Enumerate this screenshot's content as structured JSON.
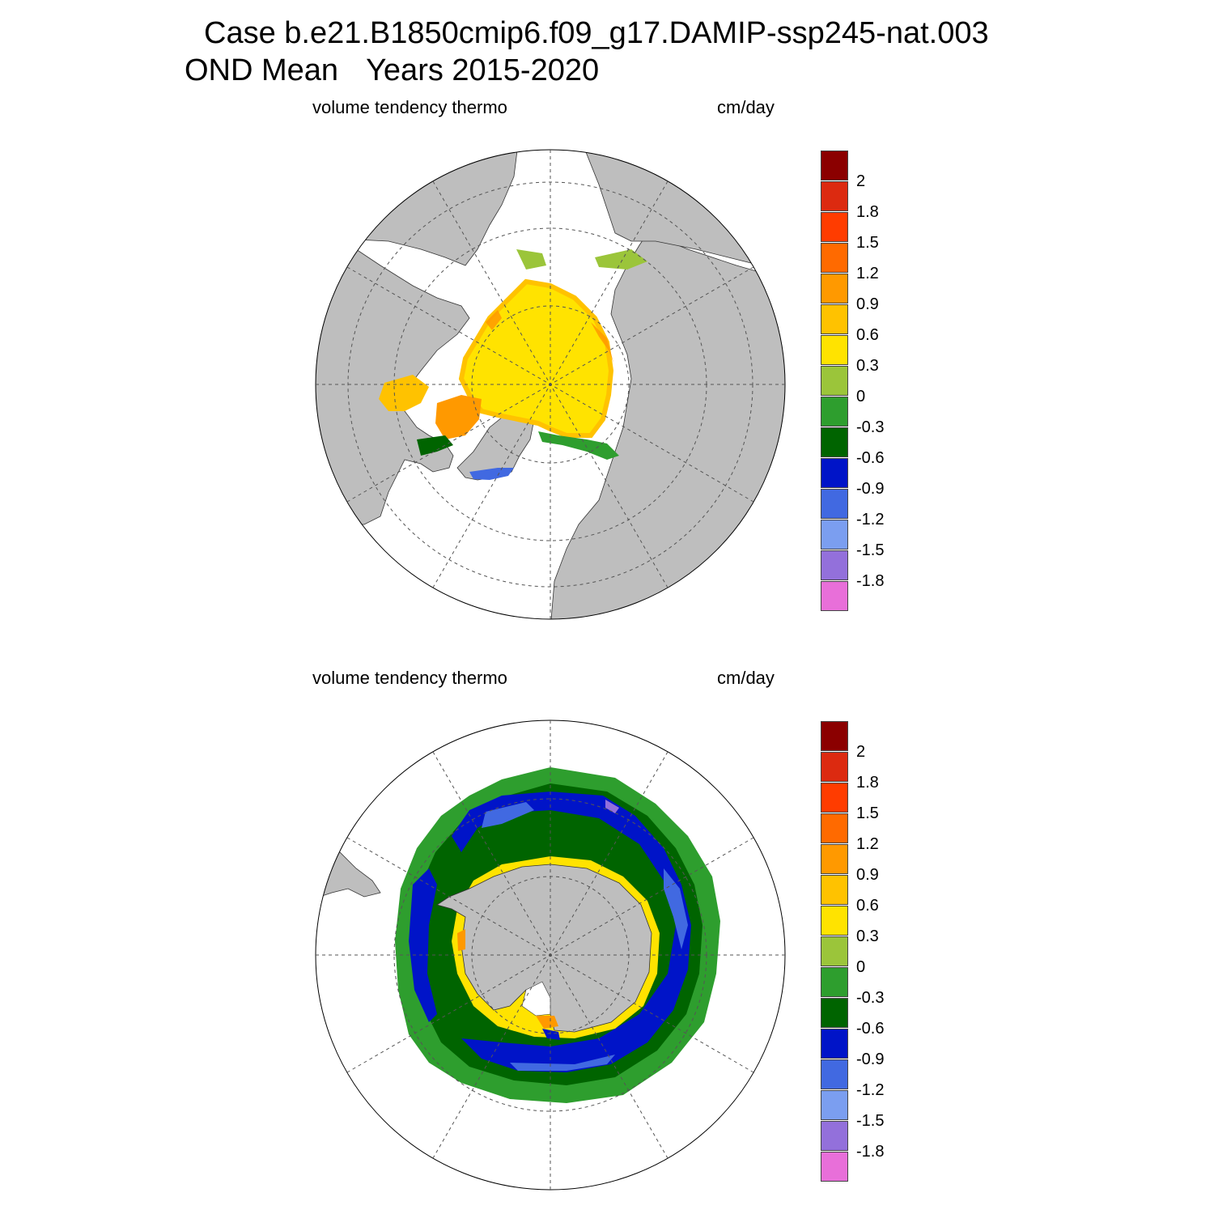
{
  "title": {
    "line1": "Case b.e21.B1850cmip6.f09_g17.DAMIP-ssp245-nat.003",
    "season": "OND Mean",
    "years": "Years 2015-2020"
  },
  "panels": [
    {
      "id": "arctic",
      "variable": "volume tendency thermo",
      "units": "cm/day",
      "hemisphere": "north"
    },
    {
      "id": "antarctic",
      "variable": "volume tendency thermo",
      "units": "cm/day",
      "hemisphere": "south"
    }
  ],
  "colorbar": {
    "labels": [
      "2",
      "1.8",
      "1.5",
      "1.2",
      "0.9",
      "0.6",
      "0.3",
      "0",
      "-0.3",
      "-0.6",
      "-0.9",
      "-1.2",
      "-1.5",
      "-1.8"
    ],
    "colors": [
      "#8b0000",
      "#dc2a10",
      "#ff3c00",
      "#ff6a00",
      "#ff9900",
      "#ffc200",
      "#ffe300",
      "#9bc53a",
      "#2e9e2e",
      "#006400",
      "#0014c8",
      "#4169e1",
      "#7b9ef0",
      "#9370db",
      "#e86fd9"
    ]
  },
  "colors": {
    "land": "#bebebe",
    "grid": "#555555"
  }
}
